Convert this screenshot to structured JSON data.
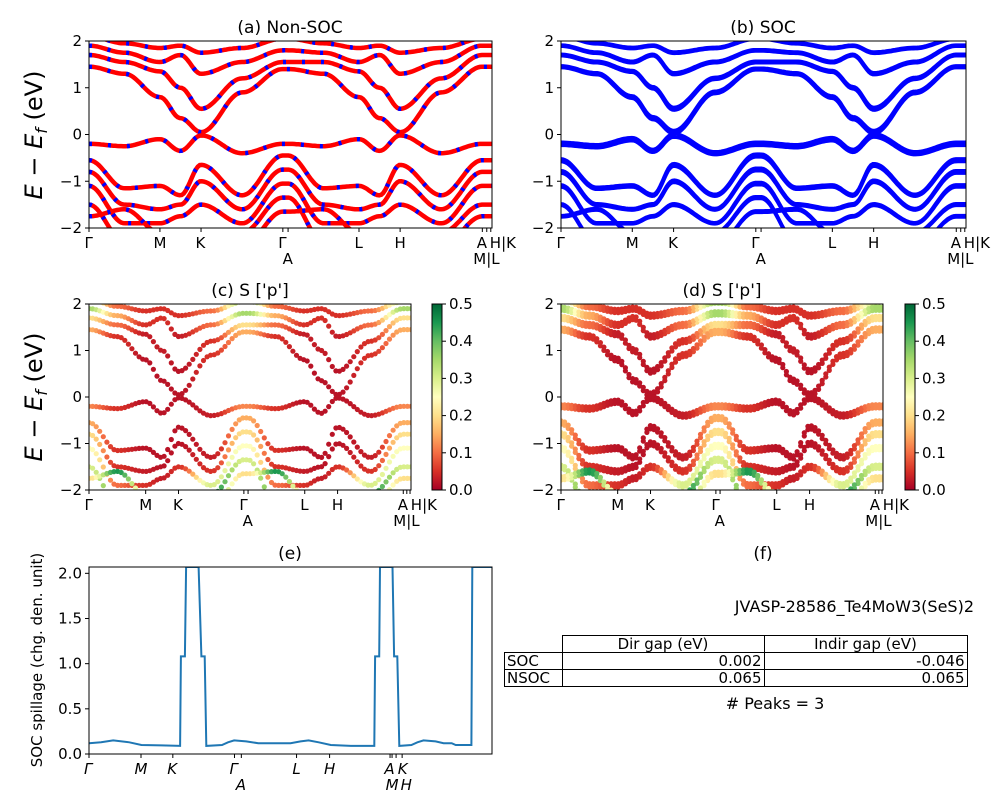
{
  "colors": {
    "non_soc_red": "#ff0000",
    "non_soc_blue": "#0000ff",
    "soc_blue": "#0000ff",
    "spillage_line": "#1f77b4",
    "colormap": "RdYlGn"
  },
  "chart_data": [
    {
      "panel": "a",
      "type": "line",
      "title": "(a) Non-SOC",
      "ylabel": {
        "main": "E − E",
        "sub": "f",
        "unit": " (eV)"
      },
      "ylim": [
        -2,
        2
      ],
      "yticks": [
        "−2",
        "−1",
        "0",
        "1",
        "2"
      ],
      "ytick_values": [
        -2,
        -1,
        0,
        1,
        2
      ],
      "xticks": {
        "labels": [
          "Γ",
          "M",
          "K",
          "Γ",
          "A",
          "L",
          "H",
          "A",
          "M|L",
          "H|K"
        ],
        "k": [
          0,
          0.176,
          0.278,
          0.481,
          0.494,
          0.67,
          0.772,
          0.976,
          0.987,
          0.997
        ]
      },
      "k": [
        0,
        0.088,
        0.176,
        0.227,
        0.278,
        0.38,
        0.481,
        0.494,
        0.582,
        0.67,
        0.721,
        0.772,
        0.874,
        0.976,
        1.0
      ],
      "series": [
        {
          "energy": [
            2.1,
            1.95,
            1.85,
            1.9,
            1.75,
            1.85,
            2.05,
            2.05,
            1.95,
            1.85,
            1.9,
            1.75,
            1.85,
            2.05,
            2.1
          ]
        },
        {
          "energy": [
            1.9,
            1.75,
            1.55,
            1.7,
            1.3,
            1.55,
            1.8,
            1.8,
            1.75,
            1.55,
            1.7,
            1.3,
            1.55,
            1.9,
            1.9
          ]
        },
        {
          "energy": [
            1.7,
            1.55,
            1.35,
            1.0,
            0.55,
            1.2,
            1.55,
            1.55,
            1.55,
            1.35,
            1.0,
            0.55,
            1.2,
            1.7,
            1.7
          ]
        },
        {
          "energy": [
            1.45,
            1.3,
            0.8,
            0.35,
            0.05,
            0.9,
            1.4,
            1.4,
            1.3,
            0.8,
            0.35,
            0.05,
            0.9,
            1.45,
            1.45
          ]
        },
        {
          "energy": [
            -0.2,
            -0.25,
            -0.1,
            -0.35,
            -0.02,
            -0.4,
            -0.2,
            -0.2,
            -0.25,
            -0.1,
            -0.35,
            -0.02,
            -0.4,
            -0.2,
            -0.2
          ]
        },
        {
          "energy": [
            -0.55,
            -1.15,
            -1.1,
            -1.3,
            -0.65,
            -1.3,
            -0.45,
            -0.45,
            -1.15,
            -1.1,
            -1.3,
            -0.65,
            -1.3,
            -0.55,
            -0.55
          ]
        },
        {
          "energy": [
            -0.8,
            -1.5,
            -1.6,
            -1.5,
            -1.0,
            -1.6,
            -0.75,
            -0.75,
            -1.5,
            -1.6,
            -1.5,
            -1.0,
            -1.6,
            -0.8,
            -0.8
          ]
        },
        {
          "energy": [
            -1.1,
            -1.9,
            -1.9,
            -1.75,
            -1.5,
            -1.9,
            -1.05,
            -1.05,
            -1.9,
            -1.9,
            -1.75,
            -1.5,
            -1.9,
            -1.1,
            -1.1
          ]
        },
        {
          "energy": [
            -1.5,
            -2.3,
            -2.4,
            -2.3,
            -2.2,
            -2.1,
            -1.35,
            -1.35,
            -2.3,
            -2.4,
            -2.3,
            -2.2,
            -2.1,
            -1.5,
            -1.5
          ]
        },
        {
          "energy": [
            -1.75,
            -1.6,
            -2.1,
            -2.5,
            -2.6,
            -2.4,
            -1.65,
            -1.65,
            -1.6,
            -2.1,
            -2.5,
            -2.6,
            -2.4,
            -1.75,
            -1.75
          ]
        }
      ]
    },
    {
      "panel": "b",
      "type": "line",
      "title": "(b) SOC",
      "ylim": [
        -2,
        2
      ],
      "yticks": [
        "−2",
        "−1",
        "0",
        "1",
        "2"
      ],
      "series_from": "a"
    },
    {
      "panel": "c",
      "type": "scatter",
      "title": "(c)  S ['p']",
      "ylabel": {
        "main": "E − E",
        "sub": "f",
        "unit": " (eV)"
      },
      "ylim": [
        -2,
        2
      ],
      "yticks": [
        "−2",
        "−1",
        "0",
        "1",
        "2"
      ],
      "series_from": "a",
      "colorbar": {
        "range": [
          0,
          0.5
        ],
        "ticks": [
          "0.0",
          "0.1",
          "0.2",
          "0.3",
          "0.4",
          "0.5"
        ],
        "tick_values": [
          0,
          0.1,
          0.2,
          0.3,
          0.4,
          0.5
        ]
      },
      "weights": [
        [
          0.3,
          0.1,
          0.05,
          0.05,
          0.05,
          0.1,
          0.35,
          0.35,
          0.1,
          0.05,
          0.05,
          0.05,
          0.1,
          0.3,
          0.3
        ],
        [
          0.35,
          0.15,
          0.05,
          0.05,
          0.03,
          0.1,
          0.35,
          0.35,
          0.15,
          0.05,
          0.05,
          0.03,
          0.1,
          0.35,
          0.35
        ],
        [
          0.2,
          0.1,
          0.03,
          0.03,
          0.02,
          0.05,
          0.2,
          0.2,
          0.1,
          0.03,
          0.03,
          0.02,
          0.05,
          0.2,
          0.2
        ],
        [
          0.15,
          0.05,
          0.02,
          0.02,
          0.02,
          0.05,
          0.15,
          0.15,
          0.05,
          0.02,
          0.02,
          0.02,
          0.05,
          0.15,
          0.15
        ],
        [
          0.12,
          0.05,
          0.02,
          0.02,
          0.02,
          0.03,
          0.12,
          0.12,
          0.05,
          0.02,
          0.02,
          0.02,
          0.03,
          0.12,
          0.12
        ],
        [
          0.15,
          0.05,
          0.02,
          0.02,
          0.02,
          0.03,
          0.15,
          0.15,
          0.05,
          0.02,
          0.02,
          0.02,
          0.03,
          0.15,
          0.15
        ],
        [
          0.2,
          0.05,
          0.03,
          0.02,
          0.02,
          0.05,
          0.2,
          0.2,
          0.05,
          0.03,
          0.02,
          0.02,
          0.05,
          0.2,
          0.2
        ],
        [
          0.25,
          0.1,
          0.05,
          0.03,
          0.05,
          0.3,
          0.25,
          0.25,
          0.1,
          0.05,
          0.03,
          0.05,
          0.3,
          0.25,
          0.25
        ],
        [
          0.3,
          0.4,
          0.1,
          0.05,
          0.1,
          0.45,
          0.3,
          0.3,
          0.4,
          0.1,
          0.05,
          0.1,
          0.45,
          0.3,
          0.3
        ],
        [
          0.2,
          0.45,
          0.2,
          0.1,
          0.2,
          0.4,
          0.2,
          0.2,
          0.45,
          0.2,
          0.1,
          0.2,
          0.4,
          0.2,
          0.2
        ]
      ]
    },
    {
      "panel": "d",
      "type": "scatter",
      "title": "(d) S ['p']",
      "ylim": [
        -2,
        2
      ],
      "yticks": [
        "−2",
        "−1",
        "0",
        "1",
        "2"
      ],
      "series_from": "a",
      "colorbar": {
        "range": [
          0,
          0.5
        ],
        "ticks": [
          "0.0",
          "0.1",
          "0.2",
          "0.3",
          "0.4",
          "0.5"
        ],
        "tick_values": [
          0,
          0.1,
          0.2,
          0.3,
          0.4,
          0.5
        ]
      },
      "weights_from": "c"
    },
    {
      "panel": "e",
      "type": "line",
      "title": "(e)",
      "ylabel": "SOC spillage (chg. den. unit)",
      "ylim": [
        0,
        2.07
      ],
      "yticks": [
        "0.0",
        "0.5",
        "1.0",
        "1.5",
        "2.0"
      ],
      "ytick_values": [
        0,
        0.5,
        1.0,
        1.5,
        2.0
      ],
      "xticks": {
        "labels": [
          "Γ",
          "M",
          "K",
          "Γ",
          "A",
          "L",
          "H",
          "A",
          "M",
          "K",
          "H"
        ],
        "k": [
          0,
          0.129,
          0.208,
          0.361,
          0.378,
          0.515,
          0.597,
          0.747,
          0.752,
          0.762,
          0.777
        ]
      },
      "x": [
        0,
        0.03,
        0.06,
        0.1,
        0.13,
        0.18,
        0.226,
        0.228,
        0.238,
        0.241,
        0.272,
        0.279,
        0.287,
        0.291,
        0.33,
        0.345,
        0.36,
        0.39,
        0.42,
        0.5,
        0.525,
        0.545,
        0.57,
        0.6,
        0.65,
        0.708,
        0.71,
        0.72,
        0.722,
        0.753,
        0.757,
        0.765,
        0.77,
        0.8,
        0.815,
        0.83,
        0.86,
        0.88,
        0.9,
        0.91,
        0.949,
        0.951,
        1.0
      ],
      "y": [
        0.12,
        0.13,
        0.15,
        0.13,
        0.1,
        0.095,
        0.09,
        1.08,
        1.08,
        2.07,
        2.07,
        1.08,
        1.08,
        0.09,
        0.1,
        0.13,
        0.15,
        0.14,
        0.12,
        0.12,
        0.14,
        0.15,
        0.13,
        0.1,
        0.09,
        0.09,
        1.08,
        1.08,
        2.07,
        2.07,
        1.08,
        1.08,
        0.09,
        0.1,
        0.13,
        0.15,
        0.14,
        0.12,
        0.12,
        0.1,
        0.1,
        2.07,
        2.07
      ]
    }
  ],
  "panel_f": {
    "title": "(f)",
    "material": "JVASP-28586_Te4MoW3(SeS)2",
    "table": {
      "headers": [
        "",
        "Dir gap (eV)",
        "Indir gap (eV)"
      ],
      "rows": [
        {
          "label": "SOC",
          "dir": "0.002",
          "indir": "-0.046"
        },
        {
          "label": "NSOC",
          "dir": "0.065",
          "indir": "0.065"
        }
      ]
    },
    "peaks": "# Peaks = 3"
  }
}
